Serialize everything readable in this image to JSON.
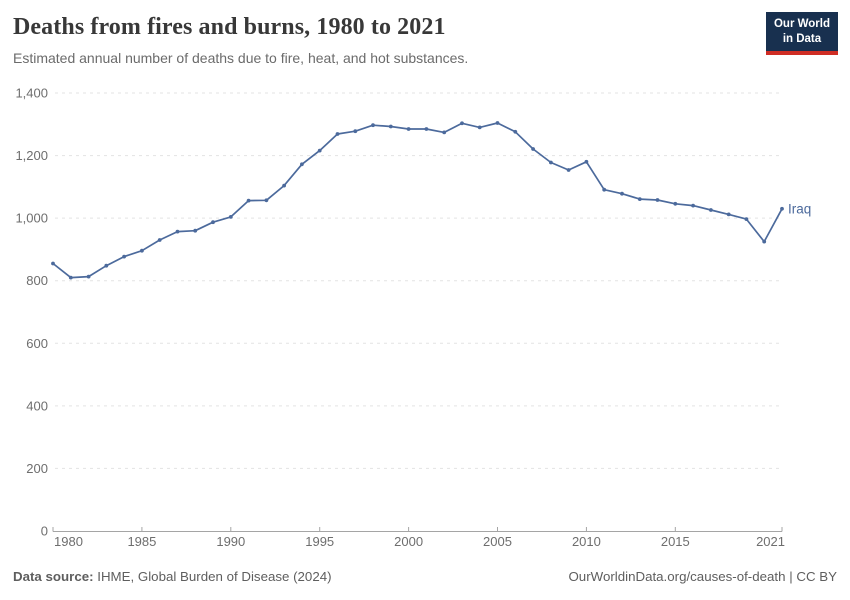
{
  "logo": {
    "line1": "Our World",
    "line2": "in Data"
  },
  "footer": {
    "source_label": "Data source:",
    "source_text": " IHME, Global Burden of Disease (2024)",
    "credit": "OurWorldinData.org/causes-of-death | CC BY"
  },
  "colors": {
    "line": "#4c6a9c",
    "gridline": "#e3e3e3",
    "axis": "#a5a5a5",
    "tick_label": "#6e6e6e",
    "logo_bg": "#18304f",
    "logo_red": "#cf2d24"
  },
  "chart_data": {
    "type": "line",
    "title": "Deaths from fires and burns, 1980 to 2021",
    "subtitle": "Estimated annual number of deaths due to fire, heat, and hot substances.",
    "grid": "horizontal dashed",
    "legend_position": "end-of-line label",
    "xlim": [
      1980,
      2021
    ],
    "ylim": [
      0,
      1400
    ],
    "x_ticks": [
      1980,
      1985,
      1990,
      1995,
      2000,
      2005,
      2010,
      2015,
      2021
    ],
    "y_ticks": [
      0,
      200,
      400,
      600,
      800,
      1000,
      1200,
      1400
    ],
    "y_tick_labels": [
      "0",
      "200",
      "400",
      "600",
      "800",
      "1,000",
      "1,200",
      "1,400"
    ],
    "series": [
      {
        "name": "Iraq",
        "x": [
          1980,
          1981,
          1982,
          1983,
          1984,
          1985,
          1986,
          1987,
          1988,
          1989,
          1990,
          1991,
          1992,
          1993,
          1994,
          1995,
          1996,
          1997,
          1998,
          1999,
          2000,
          2001,
          2002,
          2003,
          2004,
          2005,
          2006,
          2007,
          2008,
          2009,
          2010,
          2011,
          2012,
          2013,
          2014,
          2015,
          2016,
          2017,
          2018,
          2019,
          2020,
          2021
        ],
        "values": [
          855,
          810,
          813,
          848,
          877,
          896,
          930,
          957,
          960,
          987,
          1004,
          1056,
          1057,
          1104,
          1172,
          1216,
          1269,
          1278,
          1297,
          1293,
          1285,
          1285,
          1274,
          1303,
          1290,
          1304,
          1276,
          1221,
          1178,
          1154,
          1180,
          1091,
          1078,
          1061,
          1058,
          1046,
          1040,
          1026,
          1012,
          997,
          925,
          1030
        ]
      }
    ]
  }
}
